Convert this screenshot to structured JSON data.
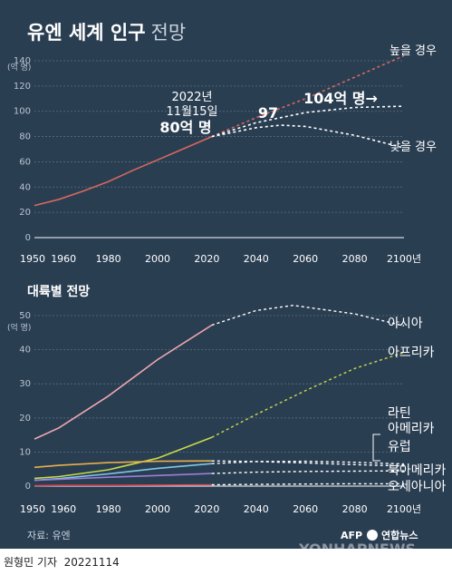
{
  "title": "유엔 세계 인구",
  "title_suffix": "전망",
  "source": "자료: 유엔",
  "byline": "원형민 기자",
  "date": "20221114",
  "brand": {
    "afp": "AFP",
    "yonhap": "연합뉴스",
    "watermark": "YONHAPNEWS"
  },
  "colors": {
    "background": "#2a3e52",
    "world": "#d8685e",
    "asia": "#f1a7b1",
    "africa": "#c8d94a",
    "latin_america": "#7ec8e8",
    "europe": "#e8b04a",
    "north_america": "#9b7fd6",
    "oceania": "#d24a55"
  },
  "chart_data": [
    {
      "type": "line",
      "title": "",
      "ylabel": "(억 명)",
      "ylim": [
        0,
        140
      ],
      "yticks": [
        "0",
        "20",
        "40",
        "60",
        "80",
        "100",
        "120",
        "140"
      ],
      "xlim": [
        1950,
        2100
      ],
      "xticks": [
        "1950",
        "1960",
        "1980",
        "2000",
        "2020",
        "2040",
        "2060",
        "2080",
        "2100년"
      ],
      "grid": true,
      "series": [
        {
          "name": "",
          "style": "solid",
          "x": [
            1950,
            1960,
            1970,
            1980,
            1990,
            2000,
            2010,
            2022
          ],
          "y": [
            25.4,
            30.3,
            37.0,
            44.4,
            53.3,
            61.5,
            69.9,
            80
          ]
        },
        {
          "name": "높을 경우",
          "style": "dashed",
          "x": [
            2022,
            2040,
            2060,
            2080,
            2100
          ],
          "y": [
            80,
            95,
            110,
            127,
            144
          ]
        },
        {
          "name": "",
          "style": "dashed",
          "x": [
            2022,
            2040,
            2060,
            2080,
            2100
          ],
          "y": [
            80,
            91,
            99,
            103,
            104
          ]
        },
        {
          "name": "낮을 경우",
          "style": "dashed",
          "x": [
            2022,
            2040,
            2050,
            2060,
            2080,
            2100
          ],
          "y": [
            80,
            87,
            89,
            88,
            81,
            71
          ]
        }
      ],
      "annotations": {
        "date_line1": "2022년",
        "date_line2": "11월15일",
        "pop_2022": "80억 명",
        "peak_mid": "97",
        "peak_2100": "104억 명→"
      }
    },
    {
      "type": "line",
      "title": "대륙별 전망",
      "ylabel": "(억 명)",
      "ylim": [
        0,
        50
      ],
      "yticks": [
        "0",
        "10",
        "20",
        "30",
        "40",
        "50"
      ],
      "xlim": [
        1950,
        2100
      ],
      "xticks": [
        "1950",
        "1960",
        "1980",
        "2000",
        "2020",
        "2040",
        "2060",
        "2080",
        "2100년"
      ],
      "grid": true,
      "split_year": 2022,
      "series": [
        {
          "name": "아시아",
          "color": "#f1a7b1",
          "x": [
            1950,
            1960,
            1980,
            2000,
            2022,
            2040,
            2055,
            2080,
            2100
          ],
          "y": [
            13.8,
            17.1,
            26.4,
            37.1,
            47.2,
            51.5,
            53.0,
            50.5,
            47.0
          ]
        },
        {
          "name": "아프리카",
          "color": "#c8d94a",
          "x": [
            1950,
            1960,
            1980,
            2000,
            2022,
            2040,
            2060,
            2080,
            2100
          ],
          "y": [
            2.3,
            2.8,
            4.8,
            8.2,
            14.3,
            21.0,
            28.0,
            34.5,
            39.2
          ]
        },
        {
          "name": "라틴 아메리카",
          "color": "#7ec8e8",
          "x": [
            1950,
            1960,
            1980,
            2000,
            2022,
            2040,
            2060,
            2080,
            2100
          ],
          "y": [
            1.7,
            2.2,
            3.6,
            5.2,
            6.6,
            7.2,
            7.3,
            7.0,
            6.5
          ]
        },
        {
          "name": "유럽",
          "color": "#e8b04a",
          "x": [
            1950,
            1960,
            1980,
            2000,
            2022,
            2040,
            2060,
            2080,
            2100
          ],
          "y": [
            5.5,
            6.1,
            6.9,
            7.3,
            7.4,
            7.2,
            6.8,
            6.3,
            5.9
          ]
        },
        {
          "name": "북아메리카",
          "color": "#9b7fd6",
          "x": [
            1950,
            1960,
            1980,
            2000,
            2022,
            2040,
            2060,
            2080,
            2100
          ],
          "y": [
            1.7,
            2.0,
            2.6,
            3.1,
            3.7,
            4.1,
            4.3,
            4.4,
            4.5
          ]
        },
        {
          "name": "오세아니아",
          "color": "#d24a55",
          "x": [
            1950,
            1960,
            1980,
            2000,
            2022,
            2040,
            2060,
            2080,
            2100
          ],
          "y": [
            0.1,
            0.2,
            0.2,
            0.3,
            0.4,
            0.5,
            0.6,
            0.7,
            0.7
          ]
        }
      ]
    }
  ]
}
